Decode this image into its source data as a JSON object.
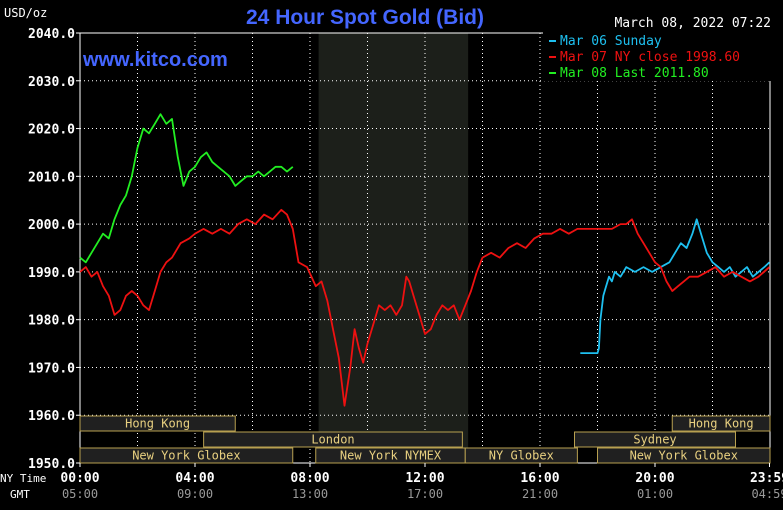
{
  "header": {
    "unit": "USD/oz",
    "title": "24 Hour Spot Gold (Bid)",
    "timestamp": "March 08, 2022 07:22",
    "watermark": "www.kitco.com"
  },
  "colors": {
    "background": "#000000",
    "title": "#4466ff",
    "watermark": "#4466ff",
    "grid": "#ffffff",
    "text": "#ffffff",
    "session_shade": "#1c1f1a",
    "sunday": "#1ec0f0",
    "ny_close": "#ee1111",
    "last": "#22ee22",
    "market_bar_fill": "#202020",
    "market_bar_border": "#b8a050",
    "market_bar_text": "#e8d080"
  },
  "legend": {
    "placement": "top-right",
    "items": [
      {
        "label": "Mar 06 Sunday",
        "color": "#1ec0f0"
      },
      {
        "label": "Mar 07 NY close 1998.60",
        "color": "#ee1111"
      },
      {
        "label": "Mar 08 Last 2011.80",
        "color": "#22ee22"
      }
    ]
  },
  "axis_labels": {
    "ny_time": "NY Time",
    "gmt": "GMT"
  },
  "markets": {
    "row1": [
      {
        "label": "Hong Kong",
        "start": 0.0,
        "end": 5.4
      },
      {
        "label": "Hong Kong",
        "start": 20.6,
        "end": 24.0
      }
    ],
    "row2": [
      {
        "label": "London",
        "start": 4.3,
        "end": 13.3
      },
      {
        "label": "Sydney",
        "start": 17.2,
        "end": 22.8
      }
    ],
    "row3": [
      {
        "label": "New York Globex",
        "start": 0.0,
        "end": 7.4
      },
      {
        "label": "New York NYMEX",
        "start": 8.2,
        "end": 13.4
      },
      {
        "label": "NY Globex",
        "start": 13.4,
        "end": 17.3
      },
      {
        "label": "New York Globex",
        "start": 18.0,
        "end": 24.0
      }
    ]
  },
  "chart_data": {
    "type": "line",
    "title": "24 Hour Spot Gold (Bid)",
    "ylabel": "USD/oz",
    "xlim": [
      0,
      24
    ],
    "ylim": [
      1950,
      2040
    ],
    "yticks": [
      1950,
      1960,
      1970,
      1980,
      1990,
      2000,
      2010,
      2020,
      2030,
      2040
    ],
    "ytick_labels": [
      "1950.0",
      "1960.0",
      "1970.0",
      "1980.0",
      "1990.0",
      "2000.0",
      "2010.0",
      "2020.0",
      "2030.0",
      "2040.0"
    ],
    "xticks": [
      0,
      4,
      8,
      12,
      16,
      20,
      23.983
    ],
    "xtick_labels": [
      "00:00",
      "04:00",
      "08:00",
      "12:00",
      "16:00",
      "20:00",
      "23:59"
    ],
    "gmt_labels": [
      "05:00",
      "09:00",
      "13:00",
      "17:00",
      "21:00",
      "01:00",
      "04:59"
    ],
    "shaded_region": [
      8.3,
      13.5
    ],
    "grid": true,
    "series": [
      {
        "name": "Mar 06 Sunday",
        "color": "#1ec0f0",
        "points": [
          [
            17.4,
            1973.0
          ],
          [
            18.0,
            1973.0
          ],
          [
            18.05,
            1974
          ],
          [
            18.1,
            1980
          ],
          [
            18.2,
            1985
          ],
          [
            18.3,
            1987
          ],
          [
            18.4,
            1989
          ],
          [
            18.5,
            1988
          ],
          [
            18.6,
            1990
          ],
          [
            18.8,
            1989
          ],
          [
            19.0,
            1991
          ],
          [
            19.3,
            1990
          ],
          [
            19.6,
            1991
          ],
          [
            19.9,
            1990
          ],
          [
            20.2,
            1991
          ],
          [
            20.5,
            1992
          ],
          [
            20.7,
            1994
          ],
          [
            20.9,
            1996
          ],
          [
            21.1,
            1995
          ],
          [
            21.3,
            1998
          ],
          [
            21.45,
            2001
          ],
          [
            21.6,
            1998
          ],
          [
            21.8,
            1994
          ],
          [
            22.0,
            1992
          ],
          [
            22.2,
            1991
          ],
          [
            22.4,
            1990
          ],
          [
            22.6,
            1991
          ],
          [
            22.8,
            1989
          ],
          [
            23.0,
            1990
          ],
          [
            23.2,
            1991
          ],
          [
            23.4,
            1989
          ],
          [
            23.6,
            1990
          ],
          [
            23.8,
            1991
          ],
          [
            23.98,
            1992
          ]
        ]
      },
      {
        "name": "Mar 07 NY close 1998.60",
        "color": "#ee1111",
        "points": [
          [
            0.0,
            1990
          ],
          [
            0.2,
            1991
          ],
          [
            0.4,
            1989
          ],
          [
            0.6,
            1990
          ],
          [
            0.8,
            1987
          ],
          [
            1.0,
            1985
          ],
          [
            1.2,
            1981
          ],
          [
            1.4,
            1982
          ],
          [
            1.6,
            1985
          ],
          [
            1.8,
            1986
          ],
          [
            2.0,
            1985
          ],
          [
            2.2,
            1983
          ],
          [
            2.4,
            1982
          ],
          [
            2.6,
            1986
          ],
          [
            2.8,
            1990
          ],
          [
            3.0,
            1992
          ],
          [
            3.2,
            1993
          ],
          [
            3.5,
            1996
          ],
          [
            3.8,
            1997
          ],
          [
            4.0,
            1998
          ],
          [
            4.3,
            1999
          ],
          [
            4.6,
            1998
          ],
          [
            4.9,
            1999
          ],
          [
            5.2,
            1998
          ],
          [
            5.5,
            2000
          ],
          [
            5.8,
            2001
          ],
          [
            6.1,
            2000
          ],
          [
            6.4,
            2002
          ],
          [
            6.7,
            2001
          ],
          [
            7.0,
            2003
          ],
          [
            7.2,
            2002
          ],
          [
            7.4,
            1999
          ],
          [
            7.6,
            1992
          ],
          [
            7.9,
            1991
          ],
          [
            8.2,
            1987
          ],
          [
            8.4,
            1988
          ],
          [
            8.6,
            1984
          ],
          [
            8.8,
            1978
          ],
          [
            9.0,
            1972
          ],
          [
            9.2,
            1962
          ],
          [
            9.4,
            1970
          ],
          [
            9.55,
            1978
          ],
          [
            9.7,
            1974
          ],
          [
            9.85,
            1971
          ],
          [
            10.0,
            1975
          ],
          [
            10.2,
            1979
          ],
          [
            10.4,
            1983
          ],
          [
            10.6,
            1982
          ],
          [
            10.8,
            1983
          ],
          [
            11.0,
            1981
          ],
          [
            11.2,
            1983
          ],
          [
            11.35,
            1989
          ],
          [
            11.45,
            1988
          ],
          [
            11.6,
            1985
          ],
          [
            11.8,
            1981
          ],
          [
            12.0,
            1977
          ],
          [
            12.2,
            1978
          ],
          [
            12.4,
            1981
          ],
          [
            12.6,
            1983
          ],
          [
            12.8,
            1982
          ],
          [
            13.0,
            1983
          ],
          [
            13.2,
            1980
          ],
          [
            13.4,
            1983
          ],
          [
            13.6,
            1986
          ],
          [
            13.8,
            1990
          ],
          [
            14.0,
            1993
          ],
          [
            14.3,
            1994
          ],
          [
            14.6,
            1993
          ],
          [
            14.9,
            1995
          ],
          [
            15.2,
            1996
          ],
          [
            15.5,
            1995
          ],
          [
            15.8,
            1997
          ],
          [
            16.1,
            1998
          ],
          [
            16.4,
            1998
          ],
          [
            16.7,
            1999
          ],
          [
            17.0,
            1998
          ],
          [
            17.3,
            1999
          ],
          [
            17.6,
            1999
          ],
          [
            17.9,
            1999
          ],
          [
            18.2,
            1999
          ],
          [
            18.5,
            1999
          ],
          [
            18.8,
            2000
          ],
          [
            19.0,
            2000
          ],
          [
            19.2,
            2001
          ],
          [
            19.4,
            1998
          ],
          [
            19.6,
            1996
          ],
          [
            19.8,
            1994
          ],
          [
            20.0,
            1992
          ],
          [
            20.2,
            1991
          ],
          [
            20.4,
            1988
          ],
          [
            20.6,
            1986
          ],
          [
            20.8,
            1987
          ],
          [
            21.0,
            1988
          ],
          [
            21.2,
            1989
          ],
          [
            21.5,
            1989
          ],
          [
            21.8,
            1990
          ],
          [
            22.1,
            1991
          ],
          [
            22.4,
            1989
          ],
          [
            22.7,
            1990
          ],
          [
            23.0,
            1989
          ],
          [
            23.3,
            1988
          ],
          [
            23.6,
            1989
          ],
          [
            23.98,
            1991
          ]
        ]
      },
      {
        "name": "Mar 08 Last 2011.80",
        "color": "#22ee22",
        "points": [
          [
            0.0,
            1993
          ],
          [
            0.2,
            1992
          ],
          [
            0.4,
            1994
          ],
          [
            0.6,
            1996
          ],
          [
            0.8,
            1998
          ],
          [
            1.0,
            1997
          ],
          [
            1.2,
            2001
          ],
          [
            1.4,
            2004
          ],
          [
            1.6,
            2006
          ],
          [
            1.8,
            2010
          ],
          [
            2.0,
            2016
          ],
          [
            2.2,
            2020
          ],
          [
            2.4,
            2019
          ],
          [
            2.6,
            2021
          ],
          [
            2.8,
            2023
          ],
          [
            3.0,
            2021
          ],
          [
            3.2,
            2022
          ],
          [
            3.4,
            2014
          ],
          [
            3.6,
            2008
          ],
          [
            3.8,
            2011
          ],
          [
            4.0,
            2012
          ],
          [
            4.2,
            2014
          ],
          [
            4.4,
            2015
          ],
          [
            4.6,
            2013
          ],
          [
            4.8,
            2012
          ],
          [
            5.0,
            2011
          ],
          [
            5.2,
            2010
          ],
          [
            5.4,
            2008
          ],
          [
            5.6,
            2009
          ],
          [
            5.8,
            2010
          ],
          [
            6.0,
            2010
          ],
          [
            6.2,
            2011
          ],
          [
            6.4,
            2010
          ],
          [
            6.6,
            2011
          ],
          [
            6.8,
            2012
          ],
          [
            7.0,
            2012
          ],
          [
            7.2,
            2011
          ],
          [
            7.4,
            2012
          ]
        ]
      }
    ]
  }
}
